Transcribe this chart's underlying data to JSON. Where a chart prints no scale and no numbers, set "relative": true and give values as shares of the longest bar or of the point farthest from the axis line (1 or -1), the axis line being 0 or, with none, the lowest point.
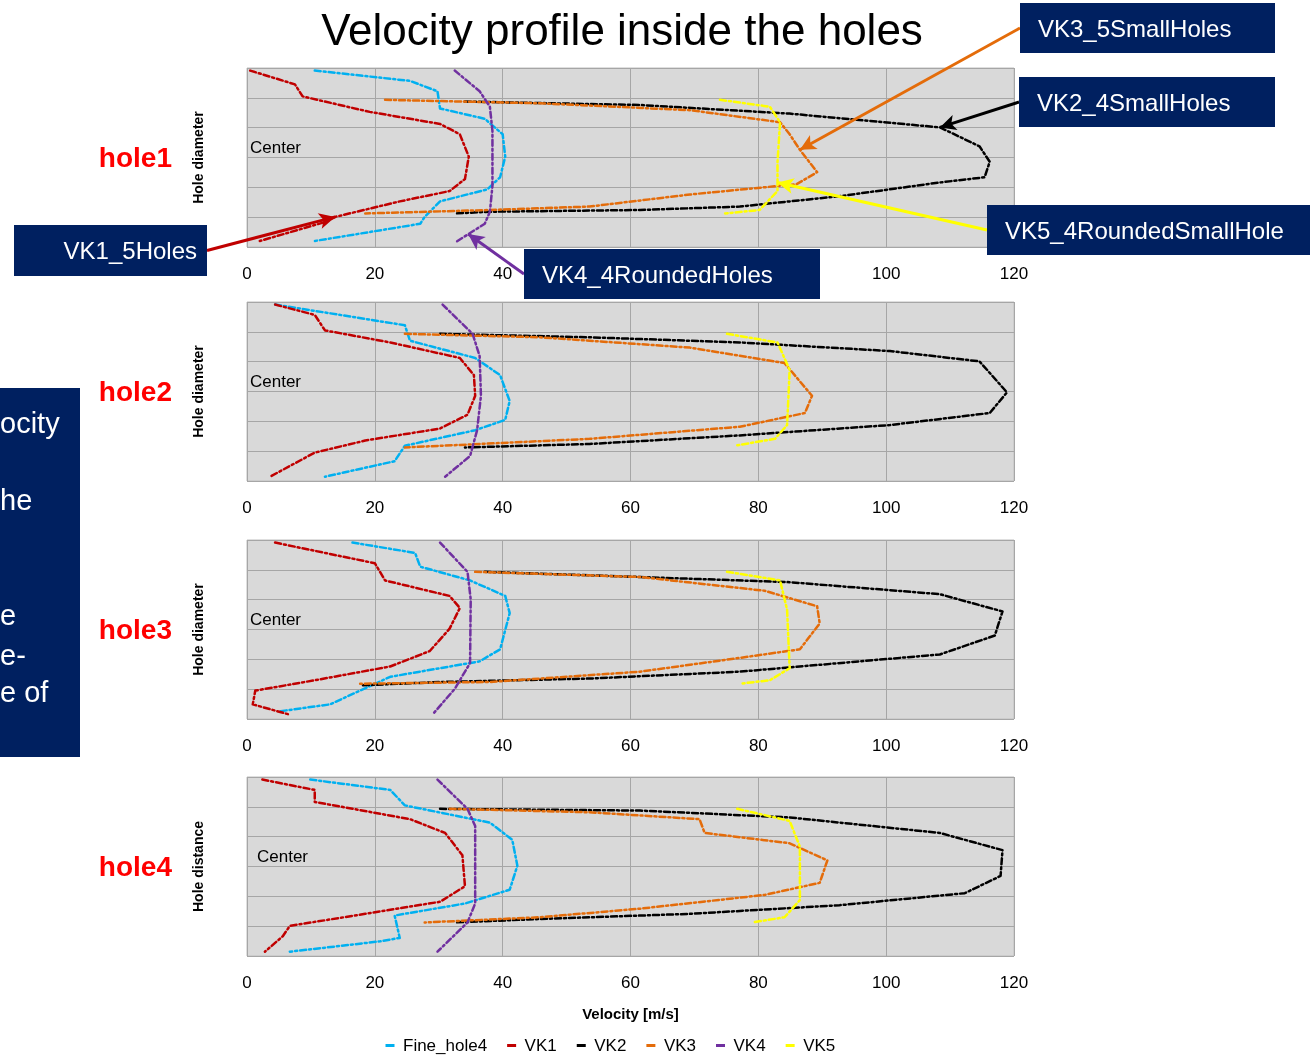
{
  "chart_data": [
    {
      "type": "line",
      "title": "Velocity profile inside the holes",
      "subtitle": "hole1",
      "ylabel": "Hole diameter",
      "relative": true,
      "xlim": [
        0,
        120
      ],
      "xticks": [
        0,
        20,
        40,
        {
          "value": 60,
          "label": null
        },
        {
          "value": 80,
          "label": null
        },
        100,
        120
      ],
      "grid": true,
      "line_style": "dashed",
      "annotations": [
        "Center",
        {
          "text": "VK3_5SmallHoles",
          "x": 86.5,
          "y": 0.54
        },
        {
          "text": "VK2_4SmallHoles",
          "x": 108.4,
          "y": 0.67
        },
        {
          "text": "VK5_4RoundedSmallHole",
          "x": 83.0,
          "y": 0.35
        },
        {
          "text": "VK1_5Holes",
          "x": 13.8,
          "y": 0.15
        },
        {
          "text": "VK4_4RoundedHoles",
          "x": 34.6,
          "y": 0.05
        }
      ],
      "series": [
        {
          "color": "#00b0f0",
          "x": [
            10.6,
            25.5,
            29.8,
            30.2,
            37.2,
            40.0,
            40.4,
            39.6,
            37.6,
            30.2,
            27.8,
            27.1,
            10.6
          ],
          "values": [
            1,
            0.94,
            0.88,
            0.78,
            0.72,
            0.63,
            0.5,
            0.38,
            0.31,
            0.24,
            0.15,
            0.11,
            0.01
          ]
        },
        {
          "color": "#c00000",
          "x": [
            0.5,
            7.5,
            8.7,
            19.2,
            30.2,
            33.3,
            34.7,
            34.1,
            31.7,
            23.9,
            13.8,
            12.2,
            2.0
          ],
          "values": [
            1,
            0.92,
            0.85,
            0.76,
            0.69,
            0.63,
            0.5,
            0.37,
            0.3,
            0.24,
            0.15,
            0.12,
            0.01
          ]
        },
        {
          "color": "#000000",
          "x": [
            34.1,
            61.5,
            84.9,
            108.4,
            114.6,
            116.2,
            115.4,
            108.4,
            92.7,
            77.1,
            61.5,
            38.0,
            32.5
          ],
          "values": [
            0.82,
            0.8,
            0.75,
            0.67,
            0.56,
            0.47,
            0.38,
            0.35,
            0.27,
            0.21,
            0.19,
            0.18,
            0.17
          ]
        },
        {
          "color": "#e46c0a",
          "x": [
            21.6,
            45.8,
            69.3,
            83.4,
            84.9,
            86.5,
            89.2,
            86.0,
            69.3,
            53.6,
            38.0,
            18.5
          ],
          "values": [
            0.83,
            0.81,
            0.77,
            0.7,
            0.63,
            0.54,
            0.41,
            0.34,
            0.28,
            0.21,
            0.19,
            0.17
          ]
        },
        {
          "color": "#7030a0",
          "x": [
            32.5,
            36.4,
            38.0,
            38.4,
            38.4,
            38.0,
            37.2,
            32.5
          ],
          "values": [
            1,
            0.88,
            0.79,
            0.65,
            0.33,
            0.18,
            0.11,
            0
          ]
        },
        {
          "color": "#ffff00",
          "x": [
            74.0,
            81.8,
            83.4,
            83.0,
            83.0,
            80.2,
            74.8
          ],
          "values": [
            0.83,
            0.79,
            0.7,
            0.47,
            0.3,
            0.19,
            0.17
          ]
        }
      ]
    },
    {
      "type": "line",
      "subtitle": "hole2",
      "ylabel": "Hole diameter",
      "relative": true,
      "xlim": [
        0,
        120
      ],
      "xticks": [
        0,
        20,
        40,
        60,
        80,
        100,
        120
      ],
      "grid": true,
      "line_style": "dashed",
      "annotations": [
        "Center",
        "ocity",
        "he",
        "e",
        "e-",
        "e of"
      ],
      "series": [
        {
          "color": "#00b0f0",
          "x": [
            4.4,
            24.7,
            25.5,
            35.7,
            39.6,
            41.1,
            40.4,
            35.7,
            24.7,
            23.1,
            12.2
          ],
          "values": [
            1,
            0.88,
            0.79,
            0.69,
            0.59,
            0.44,
            0.33,
            0.27,
            0.18,
            0.09,
            0
          ]
        },
        {
          "color": "#c00000",
          "x": [
            4.4,
            10.6,
            12.2,
            22.4,
            33.3,
            35.5,
            35.7,
            34.5,
            30.2,
            18.5,
            10.6,
            3.6
          ],
          "values": [
            1,
            0.94,
            0.85,
            0.78,
            0.69,
            0.59,
            0.47,
            0.36,
            0.28,
            0.21,
            0.14,
            0
          ]
        },
        {
          "color": "#000000",
          "x": [
            30.2,
            53.6,
            77.1,
            100.6,
            114.6,
            118.9,
            116.2,
            100.6,
            77.1,
            53.6,
            34.1
          ],
          "values": [
            0.83,
            0.81,
            0.78,
            0.73,
            0.67,
            0.49,
            0.37,
            0.3,
            0.24,
            0.19,
            0.17
          ]
        },
        {
          "color": "#e46c0a",
          "x": [
            24.7,
            45.8,
            69.3,
            84.1,
            88.4,
            87.3,
            77.1,
            53.6,
            36.4,
            24.7
          ],
          "values": [
            0.83,
            0.81,
            0.75,
            0.66,
            0.47,
            0.37,
            0.29,
            0.22,
            0.19,
            0.17
          ]
        },
        {
          "color": "#7030a0",
          "x": [
            30.6,
            35.3,
            36.4,
            36.6,
            36.0,
            34.9,
            31.0
          ],
          "values": [
            1,
            0.83,
            0.7,
            0.47,
            0.27,
            0.12,
            0
          ]
        },
        {
          "color": "#ffff00",
          "x": [
            75.1,
            83.0,
            84.9,
            84.5,
            82.6,
            76.3
          ],
          "values": [
            0.83,
            0.78,
            0.62,
            0.3,
            0.22,
            0.18
          ]
        }
      ]
    },
    {
      "type": "line",
      "subtitle": "hole3",
      "ylabel": "Hole diameter",
      "relative": true,
      "xlim": [
        0,
        120
      ],
      "xticks": [
        0,
        20,
        40,
        60,
        80,
        100,
        120
      ],
      "grid": true,
      "line_style": "dashed",
      "annotations": [
        "Center"
      ],
      "series": [
        {
          "color": "#00b0f0",
          "x": [
            16.5,
            26.3,
            27.1,
            34.9,
            40.4,
            41.1,
            39.6,
            36.4,
            22.4,
            13.0,
            5.2
          ],
          "values": [
            1,
            0.94,
            0.86,
            0.78,
            0.69,
            0.59,
            0.38,
            0.31,
            0.22,
            0.06,
            0.02
          ]
        },
        {
          "color": "#c00000",
          "x": [
            4.4,
            20.0,
            21.6,
            31.7,
            33.3,
            31.7,
            28.6,
            22.4,
            10.6,
            1.3,
            0.9,
            6.7
          ],
          "values": [
            1,
            0.88,
            0.78,
            0.69,
            0.62,
            0.5,
            0.37,
            0.28,
            0.2,
            0.14,
            0.06,
            0
          ]
        },
        {
          "color": "#000000",
          "x": [
            37.2,
            61.5,
            84.9,
            108.4,
            118.2,
            117.0,
            108.4,
            77.1,
            53.6,
            30.2,
            17.7
          ],
          "values": [
            0.83,
            0.8,
            0.77,
            0.7,
            0.6,
            0.46,
            0.35,
            0.25,
            0.21,
            0.19,
            0.17
          ]
        },
        {
          "color": "#e46c0a",
          "x": [
            35.7,
            61.5,
            81.0,
            89.2,
            89.6,
            86.5,
            77.1,
            61.5,
            38.0,
            17.7
          ],
          "values": [
            0.83,
            0.8,
            0.72,
            0.63,
            0.53,
            0.38,
            0.33,
            0.25,
            0.19,
            0.18
          ]
        },
        {
          "color": "#7030a0",
          "x": [
            30.2,
            34.5,
            35.0,
            34.9,
            32.5,
            29.0
          ],
          "values": [
            1,
            0.83,
            0.67,
            0.3,
            0.15,
            0
          ]
        },
        {
          "color": "#ffff00",
          "x": [
            75.1,
            83.4,
            84.5,
            84.9,
            81.8,
            77.1
          ],
          "values": [
            0.83,
            0.78,
            0.61,
            0.27,
            0.2,
            0.18
          ]
        }
      ]
    },
    {
      "type": "line",
      "subtitle": "hole4",
      "ylabel": "Hole distance",
      "xlabel": "Velocity [m/s]",
      "relative": true,
      "xlim": [
        0,
        120
      ],
      "xticks": [
        0,
        20,
        40,
        60,
        80,
        100,
        120
      ],
      "grid": true,
      "line_style": "dashed",
      "legend": "bottom",
      "annotations": [
        "Center"
      ],
      "series": [
        {
          "name": "Fine_hole4",
          "color": "#00b0f0",
          "x": [
            9.9,
            22.4,
            24.7,
            38.0,
            41.5,
            42.3,
            41.1,
            34.1,
            23.1,
            23.9,
            20.8,
            6.7
          ],
          "values": [
            1,
            0.94,
            0.85,
            0.75,
            0.65,
            0.5,
            0.36,
            0.28,
            0.21,
            0.08,
            0.06,
            0
          ]
        },
        {
          "name": "VK1",
          "color": "#c00000",
          "x": [
            2.4,
            10.6,
            10.6,
            25.5,
            31.0,
            33.7,
            34.1,
            30.2,
            18.5,
            6.7,
            5.6,
            2.8
          ],
          "values": [
            1,
            0.94,
            0.87,
            0.77,
            0.69,
            0.56,
            0.38,
            0.29,
            0.22,
            0.15,
            0.09,
            0
          ]
        },
        {
          "name": "VK2",
          "color": "#000000",
          "x": [
            30.2,
            61.5,
            84.9,
            108.4,
            118.2,
            117.9,
            112.3,
            92.7,
            69.3,
            45.8,
            32.5
          ],
          "values": [
            0.83,
            0.82,
            0.78,
            0.69,
            0.59,
            0.44,
            0.34,
            0.27,
            0.22,
            0.19,
            0.17
          ]
        },
        {
          "name": "VK3",
          "color": "#e46c0a",
          "x": [
            31.7,
            53.6,
            70.8,
            71.6,
            84.9,
            90.8,
            89.6,
            81.0,
            61.5,
            45.8,
            27.8
          ],
          "values": [
            0.83,
            0.81,
            0.77,
            0.69,
            0.63,
            0.53,
            0.4,
            0.33,
            0.25,
            0.2,
            0.17
          ]
        },
        {
          "name": "VK4",
          "color": "#7030a0",
          "x": [
            29.8,
            34.5,
            35.7,
            35.7,
            34.5,
            29.8
          ],
          "values": [
            1,
            0.83,
            0.73,
            0.28,
            0.17,
            0
          ]
        },
        {
          "name": "VK5",
          "color": "#ffff00",
          "x": [
            76.7,
            84.9,
            86.5,
            86.5,
            84.1,
            79.1
          ],
          "values": [
            0.83,
            0.76,
            0.61,
            0.3,
            0.2,
            0.17
          ]
        }
      ]
    }
  ]
}
